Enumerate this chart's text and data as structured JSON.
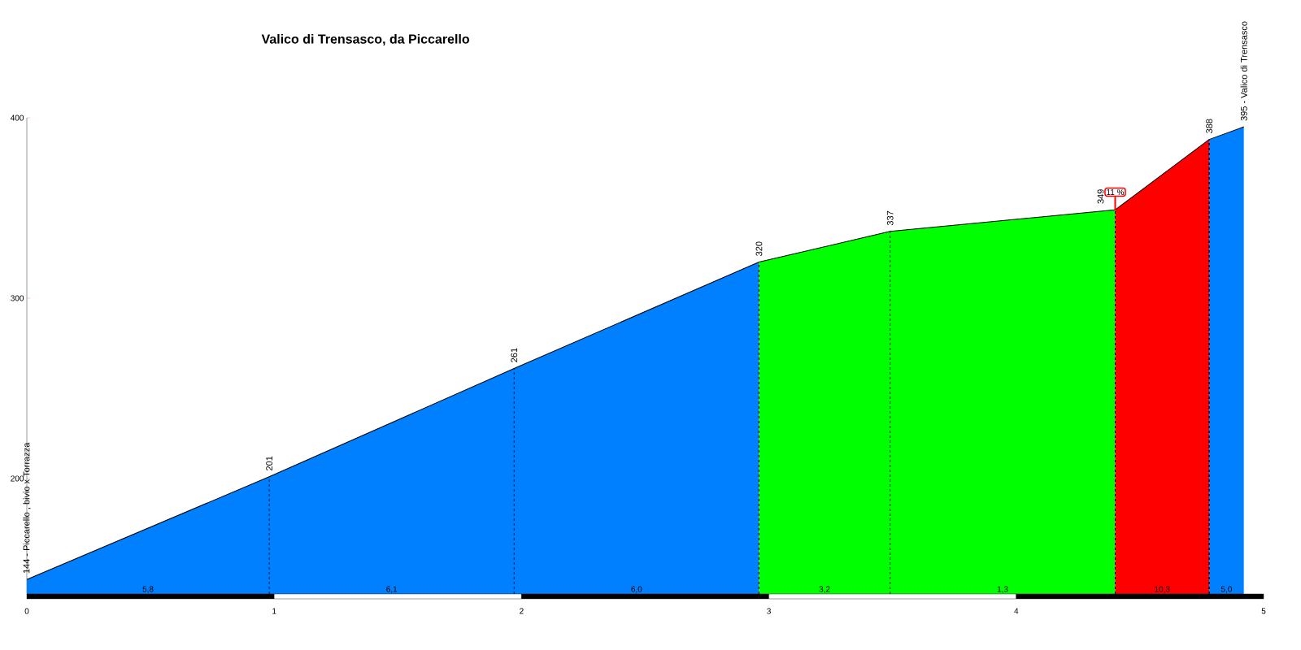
{
  "chart_data": {
    "type": "area",
    "title": "Valico di Trensasco, da Piccarello",
    "series": [
      {
        "color": "#0080ff",
        "x": [
          0,
          0.98,
          1.97,
          2.96
        ],
        "values": [
          144,
          201,
          261,
          320
        ],
        "value_labels": [
          "144 - Piccarello , bivio x Torrazza",
          "201",
          "261",
          "320"
        ]
      },
      {
        "color": "#00ff00",
        "x": [
          2.96,
          3.49,
          4.4
        ],
        "values": [
          320,
          337,
          349
        ],
        "value_labels": [
          null,
          "337",
          "349"
        ]
      },
      {
        "color": "#ff0000",
        "x": [
          4.4,
          4.78
        ],
        "values": [
          349,
          388
        ],
        "value_labels": [
          null,
          "388"
        ]
      },
      {
        "color": "#0080ff",
        "x": [
          4.78,
          4.92
        ],
        "values": [
          388,
          395
        ],
        "value_labels": [
          null,
          "395 - Valico di Trensasco"
        ]
      }
    ],
    "annotations": [
      {
        "text": "5,8",
        "x": 0.49,
        "y": 136
      },
      {
        "text": "6,1",
        "x": 1.475,
        "y": 136
      },
      {
        "text": "6,0",
        "x": 2.465,
        "y": 136
      },
      {
        "text": "3,2",
        "x": 3.225,
        "y": 136
      },
      {
        "text": "1,3",
        "x": 3.945,
        "y": 136
      },
      {
        "text": "10,3",
        "x": 4.59,
        "y": 136
      },
      {
        "text": "5,0",
        "x": 4.85,
        "y": 136
      },
      {
        "text": "11 %",
        "x": 4.4,
        "y": 349
      }
    ],
    "xlim": [
      0,
      5
    ],
    "ylim": [
      136,
      400
    ],
    "xticks": [
      0,
      1,
      2,
      3,
      4,
      5
    ],
    "yticks": [
      200,
      300,
      400
    ]
  }
}
